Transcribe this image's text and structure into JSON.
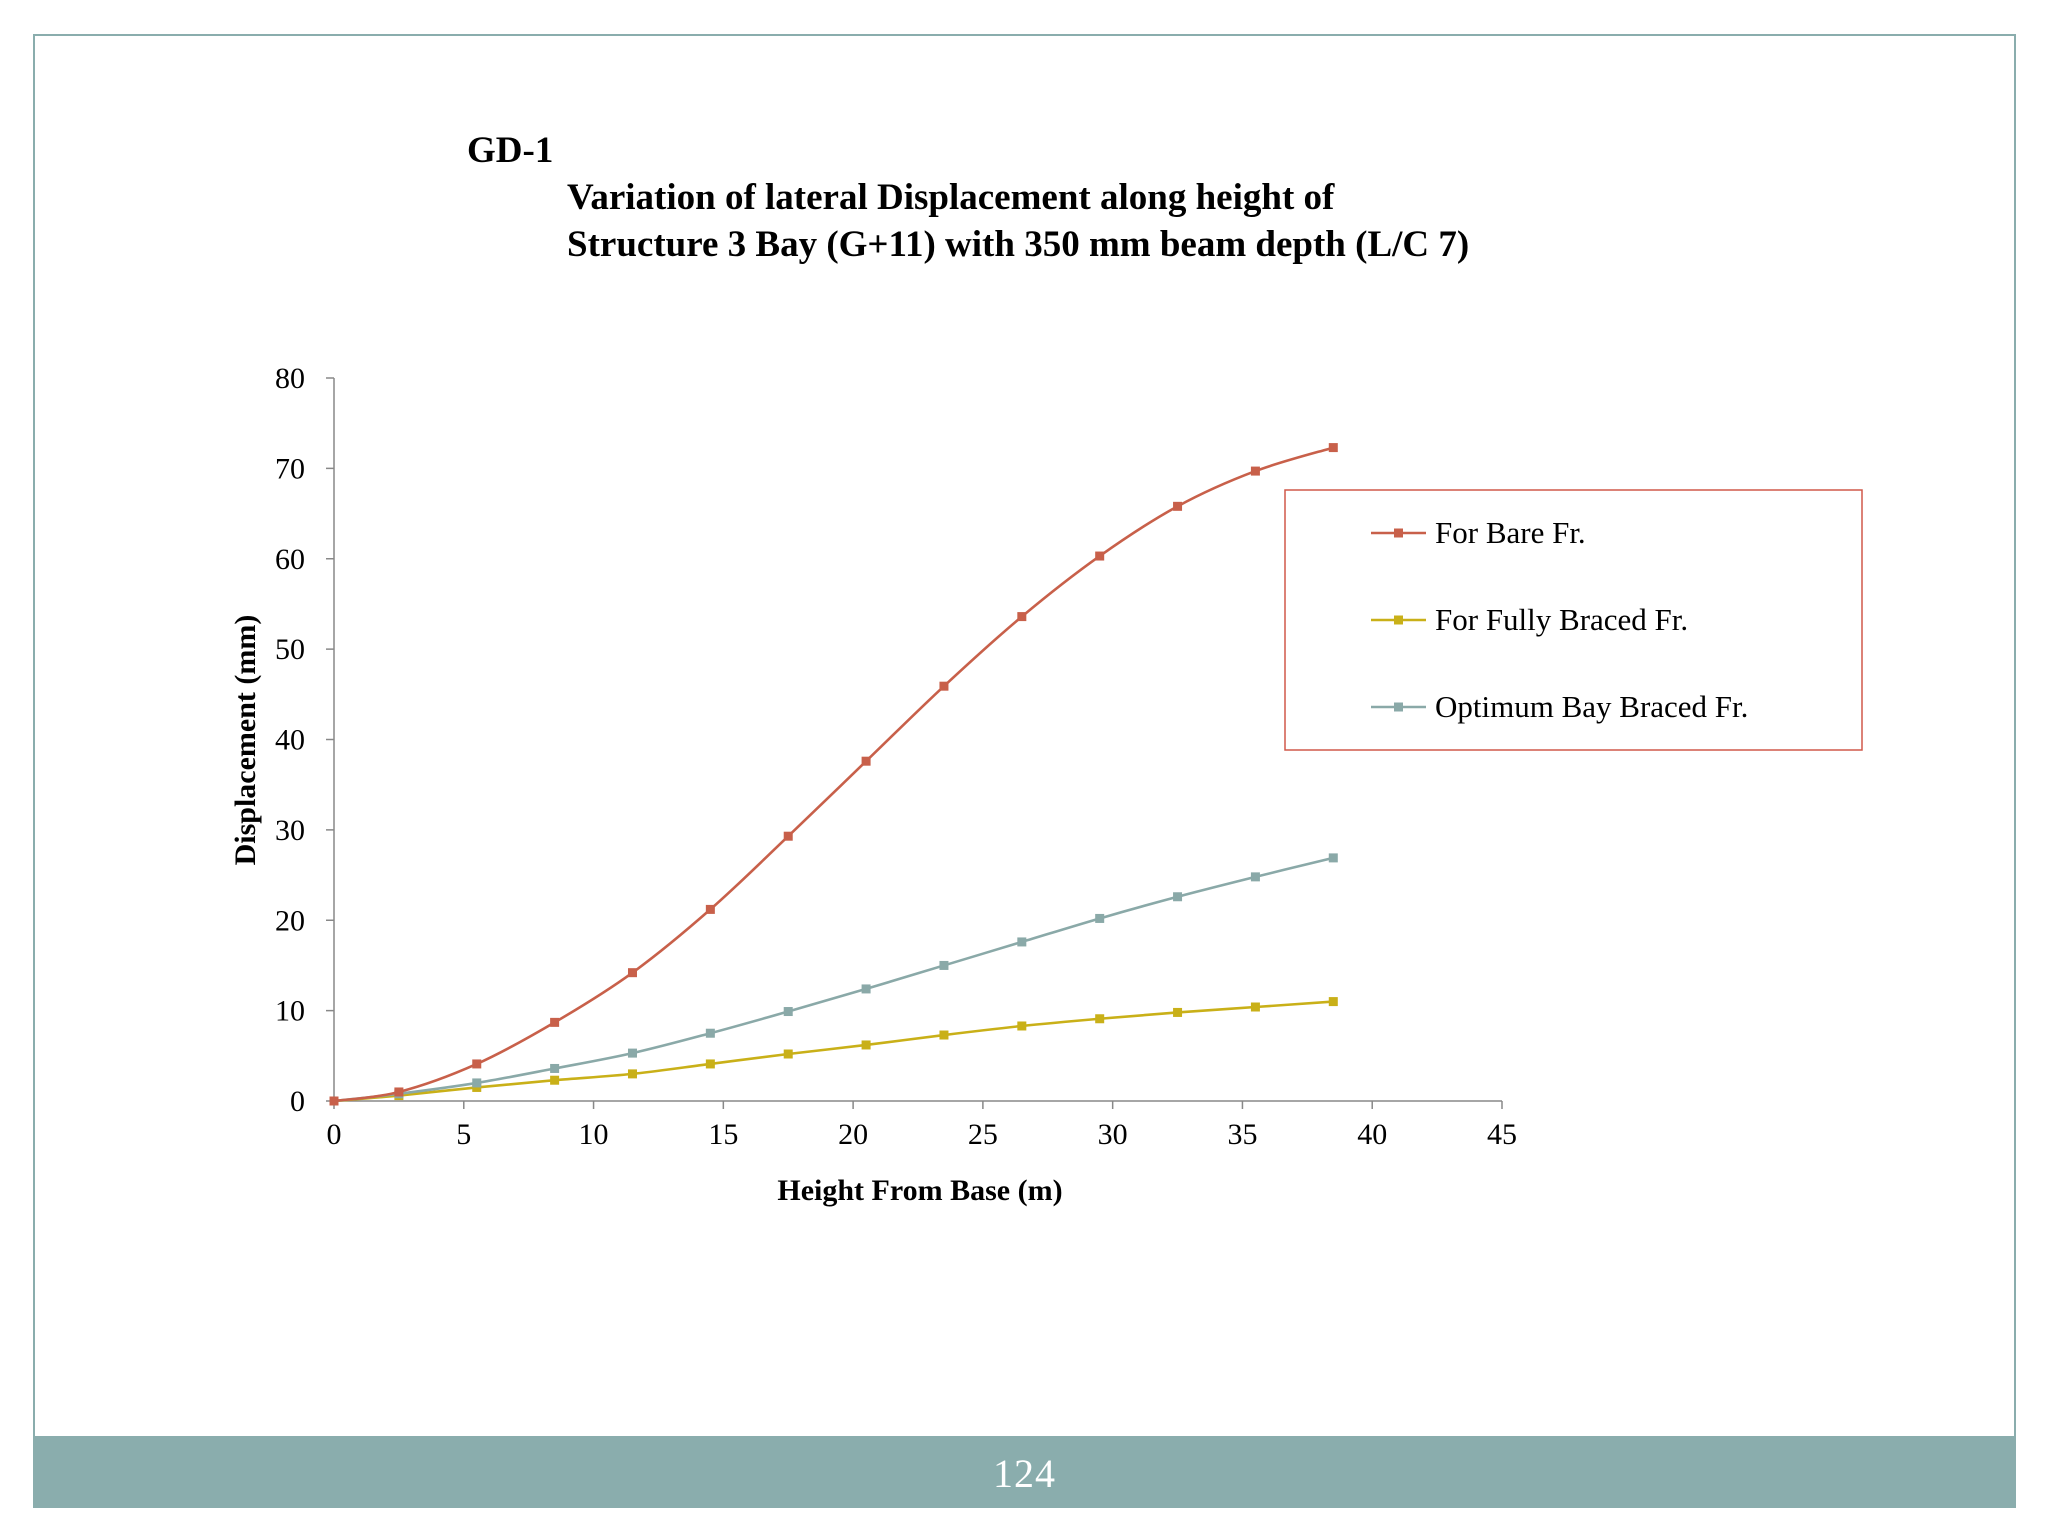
{
  "chart_data": {
    "type": "line",
    "label": "GD-1",
    "title_lines": [
      "Variation of lateral Displacement along height of",
      "Structure 3 Bay (G+11) with 350 mm beam depth (L/C 7)"
    ],
    "xlabel": "Height From Base (m)",
    "ylabel": "Displacement (mm)",
    "xlim": [
      0,
      45
    ],
    "ylim": [
      0,
      80
    ],
    "xticks": [
      0,
      5,
      10,
      15,
      20,
      25,
      30,
      35,
      40,
      45
    ],
    "yticks": [
      0,
      10,
      20,
      30,
      40,
      50,
      60,
      70,
      80
    ],
    "grid": false,
    "legend_position": "right",
    "x": [
      0,
      2.5,
      5.5,
      8.5,
      11.5,
      14.5,
      17.5,
      20.5,
      23.5,
      26.5,
      29.5,
      32.5,
      35.5,
      38.5
    ],
    "series": [
      {
        "name": "For Bare Fr.",
        "color": "#c8604a",
        "values": [
          0,
          1.0,
          4.1,
          8.7,
          14.2,
          21.2,
          29.3,
          37.6,
          45.9,
          53.6,
          60.3,
          65.8,
          69.7,
          72.3
        ]
      },
      {
        "name": "For Fully Braced Fr.",
        "color": "#c9b018",
        "values": [
          0,
          0.6,
          1.5,
          2.3,
          3.0,
          4.1,
          5.2,
          6.2,
          7.3,
          8.3,
          9.1,
          9.8,
          10.4,
          11.0
        ]
      },
      {
        "name": "Optimum Bay Braced Fr.",
        "color": "#8aa9a8",
        "values": [
          0,
          0.8,
          2.0,
          3.6,
          5.3,
          7.5,
          9.9,
          12.4,
          15.0,
          17.6,
          20.2,
          22.6,
          24.8,
          26.9
        ]
      }
    ]
  },
  "footer": {
    "page_number": "124",
    "band_color": "#8aadad"
  },
  "legend_border_color": "#d0594a"
}
